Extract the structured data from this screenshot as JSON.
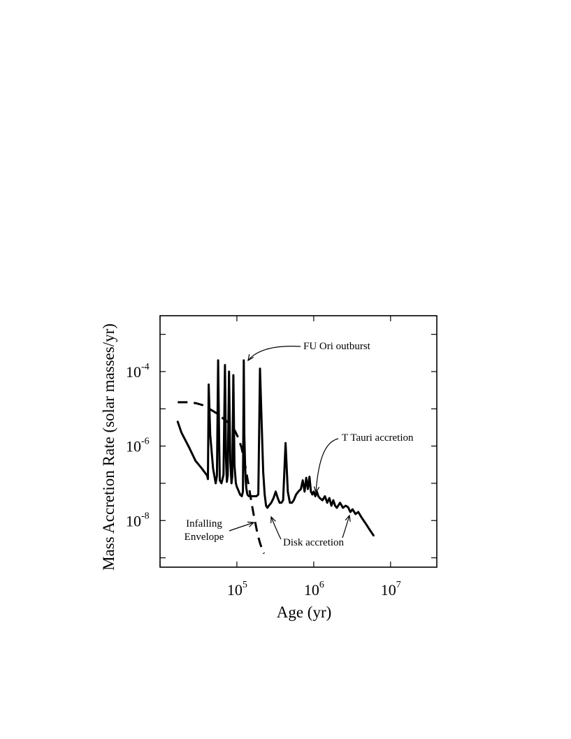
{
  "chart_data": {
    "type": "line",
    "title": "",
    "xlabel": "Age (yr)",
    "ylabel": "Mass  Accretion  Rate  (solar masses/yr)",
    "x_scale": "log",
    "y_scale": "log",
    "xlim": [
      10000,
      40000000
    ],
    "ylim": [
      5.6e-10,
      0.00316
    ],
    "grid": false,
    "x_ticks": [
      {
        "base": "10",
        "exp": "5",
        "value": 100000
      },
      {
        "base": "10",
        "exp": "6",
        "value": 1000000
      },
      {
        "base": "10",
        "exp": "7",
        "value": 10000000
      }
    ],
    "y_ticks": [
      {
        "base": "10",
        "exp": "-4",
        "value": 0.0001
      },
      {
        "base": "10",
        "exp": "-6",
        "value": 1e-06
      },
      {
        "base": "10",
        "exp": "-8",
        "value": 1e-08
      }
    ],
    "series": [
      {
        "style": "solid",
        "x": [
          17000,
          19000,
          24000,
          29000,
          35000,
          41000,
          42000,
          43000,
          45000,
          49000,
          53000,
          55000,
          57000,
          59000,
          60000,
          63000,
          67000,
          70000,
          72000,
          74000,
          76000,
          79000,
          82000,
          85000,
          87000,
          90000,
          93000,
          97000,
          100000,
          103000,
          110000,
          116000,
          120000,
          123000,
          125000,
          128000,
          130000,
          133000,
          137000,
          143000,
          150000,
          160000,
          170000,
          180000,
          190000,
          200000,
          210000,
          220000,
          230000,
          240000,
          250000,
          260000,
          280000,
          300000,
          320000,
          340000,
          360000,
          380000,
          400000,
          430000,
          460000,
          490000,
          520000,
          550000,
          590000,
          630000,
          680000,
          720000,
          760000,
          800000,
          840000,
          880000,
          920000,
          960000,
          1000000,
          1050000,
          1100000,
          1150000,
          1200000,
          1300000,
          1400000,
          1500000,
          1600000,
          1700000,
          1800000,
          1900000,
          2000000,
          2200000,
          2400000,
          2600000,
          2800000,
          3000000,
          3200000,
          3500000,
          3800000,
          4200000,
          4800000,
          5400000,
          6000000
        ],
        "y": [
          4.5e-06,
          2.3e-06,
          9e-07,
          4e-07,
          2.5e-07,
          1.6e-07,
          1.3e-07,
          4.5e-05,
          2e-06,
          2.5e-07,
          1e-07,
          1.6e-07,
          0.0002,
          1e-06,
          1.2e-07,
          1e-07,
          1.7e-07,
          0.00015,
          5e-07,
          1.1e-07,
          1.6e-07,
          0.0001,
          4e-07,
          1e-07,
          1.5e-07,
          8e-05,
          3e-07,
          1e-07,
          8e-08,
          7e-08,
          5e-08,
          4.5e-08,
          6e-08,
          0.0002,
          2e-06,
          3e-07,
          1.2e-07,
          7e-08,
          5e-08,
          4.5e-08,
          4.5e-08,
          4.5e-08,
          4.5e-08,
          4.5e-08,
          5e-08,
          0.00012,
          4e-06,
          2e-07,
          5e-08,
          2.5e-08,
          2.2e-08,
          2.5e-08,
          3e-08,
          4e-08,
          6e-08,
          4e-08,
          3e-08,
          3e-08,
          3.5e-08,
          1.2e-06,
          6e-08,
          3e-08,
          3e-08,
          3.5e-08,
          5e-08,
          6e-08,
          7e-08,
          1.2e-07,
          6e-08,
          1.4e-07,
          7e-08,
          1.5e-07,
          6e-08,
          5e-08,
          6e-08,
          4.5e-08,
          6e-08,
          4.5e-08,
          4e-08,
          3.5e-08,
          4.5e-08,
          3e-08,
          4e-08,
          2.5e-08,
          3.5e-08,
          2.5e-08,
          2.2e-08,
          3e-08,
          2.2e-08,
          2.5e-08,
          2.3e-08,
          1.7e-08,
          2e-08,
          1.5e-08,
          1.7e-08,
          1.2e-08,
          8e-09,
          5.5e-09,
          4e-09
        ]
      },
      {
        "style": "dashed",
        "x": [
          17000,
          20000,
          25000,
          30000,
          36000,
          42000,
          50000,
          58000,
          66000,
          75000,
          85000,
          95000,
          105000,
          115000,
          125000,
          135000,
          145000,
          155000,
          165000,
          175000,
          185000,
          200000,
          215000,
          225000
        ],
        "y": [
          1.5e-05,
          1.5e-05,
          1.5e-05,
          1.4e-05,
          1.25e-05,
          1.05e-05,
          8.5e-06,
          7e-06,
          5.5e-06,
          4.5e-06,
          3.5e-06,
          2.5e-06,
          1.6e-06,
          9e-07,
          4e-07,
          1.6e-07,
          7e-08,
          3e-08,
          1.5e-08,
          8e-09,
          4.5e-09,
          2.5e-09,
          1.6e-09,
          1.3e-09
        ]
      }
    ],
    "annotations": [
      {
        "lines": [
          "FU  Ori  outburst"
        ],
        "anchor": "start"
      },
      {
        "lines": [
          "T  Tauri  accretion"
        ],
        "anchor": "start"
      },
      {
        "lines": [
          "Infalling",
          "Envelope"
        ],
        "anchor": "middle"
      },
      {
        "lines": [
          "Disk accretion"
        ],
        "anchor": "start"
      }
    ]
  }
}
